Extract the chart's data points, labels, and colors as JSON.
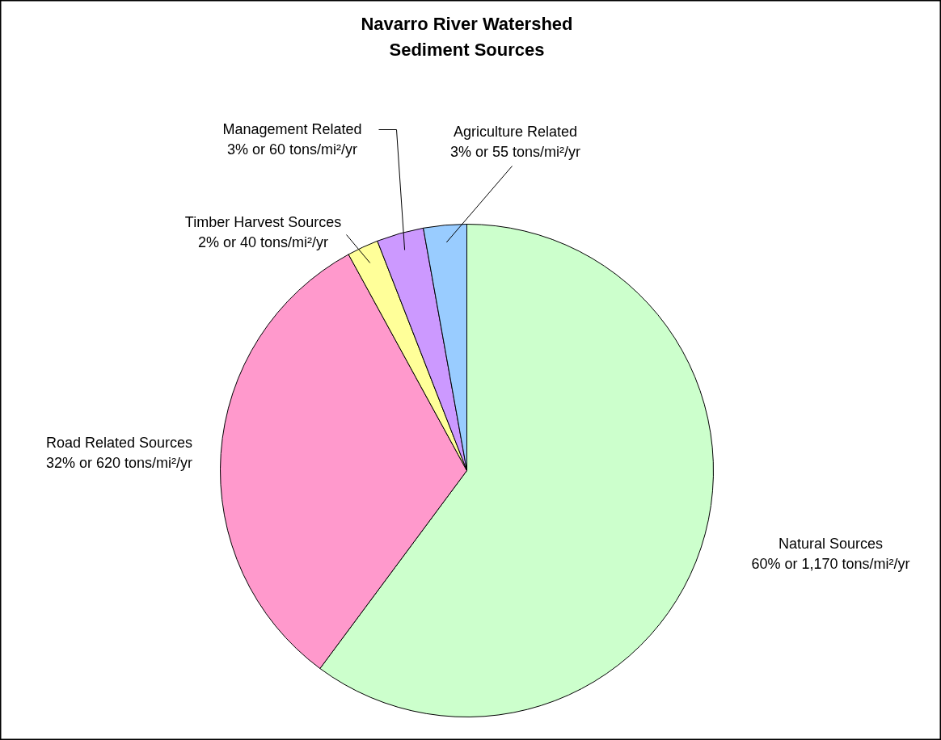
{
  "chart_data": {
    "type": "pie",
    "title": "Navarro River Watershed\nSediment Sources",
    "categories": [
      "Natural Sources",
      "Road Related Sources",
      "Timber Harvest Sources",
      "Management Related",
      "Agriculture Related"
    ],
    "values": [
      1170,
      620,
      40,
      60,
      55
    ],
    "value_labels": [
      "60% or 1,170 tons/mi²/yr",
      "32% or 620 tons/mi²/yr",
      "2% or 40 tons/mi²/yr",
      "3% or 60 tons/mi²/yr",
      "3% or 55 tons/mi²/yr"
    ],
    "colors": [
      "#ccffcc",
      "#ff99cc",
      "#ffff99",
      "#cc99ff",
      "#99ccff"
    ]
  }
}
